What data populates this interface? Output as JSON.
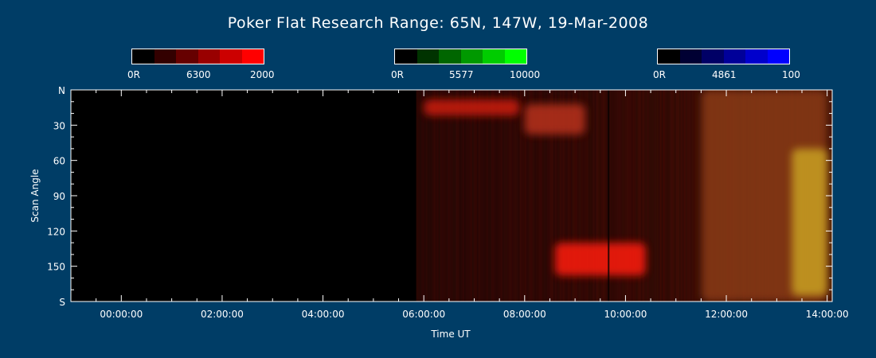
{
  "chart_data": {
    "type": "heatmap",
    "title": "Poker Flat Research Range: 65N, 147W, 19-Mar-2008",
    "xlabel": "Time UT",
    "ylabel": "Scan Angle",
    "x_ticks": [
      "00:00:00",
      "02:00:00",
      "04:00:00",
      "06:00:00",
      "08:00:00",
      "10:00:00",
      "12:00:00",
      "14:00:00"
    ],
    "x_tick_hours": [
      0,
      2,
      4,
      6,
      8,
      10,
      12,
      14
    ],
    "xlim_hours": [
      -1.0,
      14.1
    ],
    "y_ticks": [
      "N",
      "30",
      "60",
      "90",
      "120",
      "150",
      "S"
    ],
    "y_tick_values": [
      0,
      30,
      60,
      90,
      120,
      150,
      180
    ],
    "ylim": [
      0,
      180
    ],
    "data_start_hour": 5.85,
    "colorbars": [
      {
        "name": "6300",
        "min_label": "0R",
        "max_label": "2000",
        "colors": [
          "#000000",
          "#330000",
          "#660000",
          "#990000",
          "#cc0000",
          "#ff0000"
        ]
      },
      {
        "name": "5577",
        "min_label": "0R",
        "max_label": "10000",
        "colors": [
          "#000000",
          "#003300",
          "#006600",
          "#009900",
          "#00cc00",
          "#00ff00"
        ]
      },
      {
        "name": "4861",
        "min_label": "0R",
        "max_label": "100",
        "colors": [
          "#000000",
          "#000033",
          "#000066",
          "#000099",
          "#0000cc",
          "#0000ff"
        ]
      }
    ],
    "features": [
      {
        "label": "red patch",
        "t_start": 6.0,
        "t_end": 7.9,
        "angle_start": 8,
        "angle_end": 22,
        "color": "#cc1a10"
      },
      {
        "label": "red-green patch",
        "t_start": 8.0,
        "t_end": 9.2,
        "angle_start": 12,
        "angle_end": 38,
        "color": "#b8301a"
      },
      {
        "label": "bright red patch",
        "t_start": 8.6,
        "t_end": 10.4,
        "angle_start": 130,
        "angle_end": 158,
        "color": "#ff1a10"
      },
      {
        "label": "orange band",
        "t_start": 11.5,
        "t_end": 14.0,
        "angle_start": 0,
        "angle_end": 180,
        "color": "#8a3a14"
      },
      {
        "label": "yellow band",
        "t_start": 13.3,
        "t_end": 14.0,
        "angle_start": 50,
        "angle_end": 175,
        "color": "#c8a020"
      }
    ]
  }
}
